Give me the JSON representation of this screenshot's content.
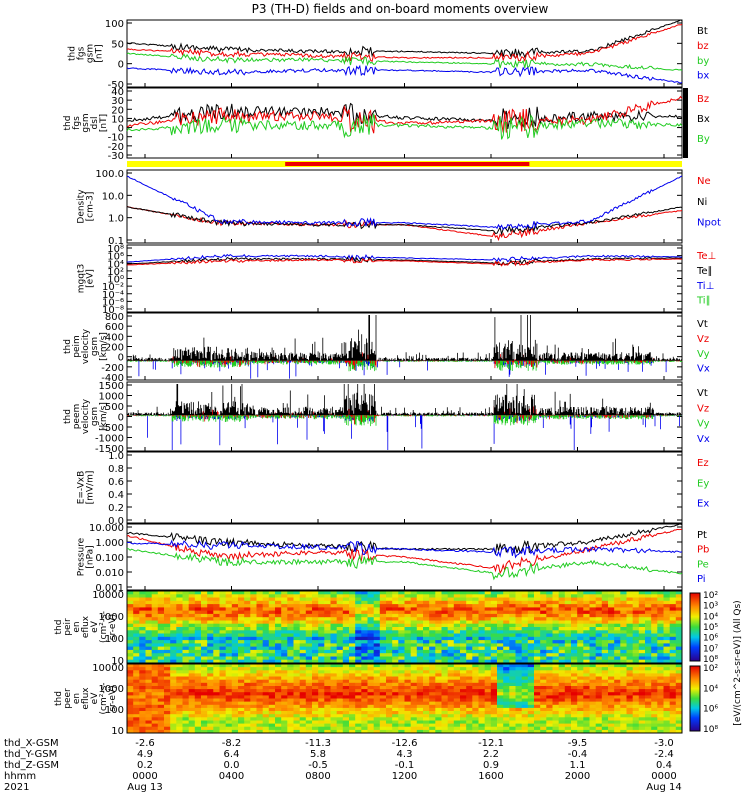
{
  "title": "P3 (TH-D) fields and on-board moments overview",
  "colors": {
    "black": "#000000",
    "red": "#ee0000",
    "green": "#22cc22",
    "blue": "#0000ee",
    "yellow": "#ffff00",
    "mode_red": "#ee0000"
  },
  "panels": [
    {
      "id": "fgs-gsm",
      "ylabel": [
        "thd",
        "fgs",
        "gsm",
        "[nT]"
      ],
      "ticks": [
        "100",
        "50",
        "0",
        "-50"
      ],
      "legend": [
        {
          "text": "Bt",
          "color": "black"
        },
        {
          "text": "bz",
          "color": "red"
        },
        {
          "text": "by",
          "color": "green"
        },
        {
          "text": "bx",
          "color": "blue"
        }
      ]
    },
    {
      "id": "fgs-gsm-dsl",
      "ylabel": [
        "thd",
        "fgs",
        "gsm",
        "dsl",
        "[nT]"
      ],
      "ticks": [
        "40",
        "30",
        "20",
        "10",
        "0",
        "-10",
        "-20",
        "-30"
      ],
      "legend": [
        {
          "text": "Bz",
          "color": "red"
        },
        {
          "text": "Bx",
          "color": "black"
        },
        {
          "text": "By",
          "color": "green"
        }
      ]
    },
    {
      "id": "density",
      "ylabel": [
        "Density",
        "[cm-3]"
      ],
      "ticks": [
        "100.0",
        "10.0",
        "1.0",
        "0.1"
      ],
      "legend": [
        {
          "text": "Ne",
          "color": "red"
        },
        {
          "text": "Ni",
          "color": "black"
        },
        {
          "text": "Npot",
          "color": "blue"
        }
      ]
    },
    {
      "id": "temperature",
      "ylabel": [
        "mgqt3",
        "[eV]"
      ],
      "ticks": [
        "10⁸",
        "10⁶",
        "10⁴",
        "10²",
        "10⁰",
        "10⁻²",
        "10⁻⁴",
        "10⁻⁶",
        "10⁻⁸"
      ],
      "legend": [
        {
          "text": "Te⊥",
          "color": "red"
        },
        {
          "text": "Te∥",
          "color": "black"
        },
        {
          "text": "Ti⊥",
          "color": "blue"
        },
        {
          "text": "Ti∥",
          "color": "green"
        }
      ]
    },
    {
      "id": "peim-velocity",
      "ylabel": [
        "thd",
        "peim",
        "velocity",
        "gsm",
        "[km/s]"
      ],
      "ticks": [
        "800",
        "600",
        "400",
        "200",
        "0",
        "-200",
        "-400"
      ],
      "legend": [
        {
          "text": "Vt",
          "color": "black"
        },
        {
          "text": "Vz",
          "color": "red"
        },
        {
          "text": "Vy",
          "color": "green"
        },
        {
          "text": "Vx",
          "color": "blue"
        }
      ]
    },
    {
      "id": "peem-velocity",
      "ylabel": [
        "thd",
        "peem",
        "velocity",
        "gsm",
        "[km/s]"
      ],
      "ticks": [
        "1500",
        "1000",
        "500",
        "0",
        "-500",
        "-1000",
        "-1500"
      ],
      "legend": [
        {
          "text": "Vt",
          "color": "black"
        },
        {
          "text": "Vz",
          "color": "red"
        },
        {
          "text": "Vy",
          "color": "green"
        },
        {
          "text": "Vx",
          "color": "blue"
        }
      ]
    },
    {
      "id": "efield",
      "ylabel": [
        "E=-VxB",
        "[mV/m]"
      ],
      "ticks": [
        "1.0",
        "0.8",
        "0.6",
        "0.4",
        "0.2",
        "0.0"
      ],
      "legend": [
        {
          "text": "Ez",
          "color": "red"
        },
        {
          "text": "Ey",
          "color": "green"
        },
        {
          "text": "Ex",
          "color": "blue"
        }
      ]
    },
    {
      "id": "pressure",
      "ylabel": [
        "Pressure",
        "[nPa]"
      ],
      "ticks": [
        "10.000",
        "1.000",
        "0.100",
        "0.010",
        "0.001"
      ],
      "legend": [
        {
          "text": "Pt",
          "color": "black"
        },
        {
          "text": "Pb",
          "color": "red"
        },
        {
          "text": "Pe",
          "color": "green"
        },
        {
          "text": "Pi",
          "color": "blue"
        }
      ]
    },
    {
      "id": "peir-spec",
      "ylabel": [
        "thd",
        "peir",
        "en",
        "eflux",
        "eV",
        "(cm²-s-",
        "sr-eV)"
      ],
      "ticks": [
        "10000",
        "1000",
        "100",
        "10"
      ]
    },
    {
      "id": "peer-spec",
      "ylabel": [
        "thd",
        "peer",
        "en",
        "eflux",
        "eV",
        "(cm²-s-",
        "sr-eV)"
      ],
      "ticks": [
        "10000",
        "1000",
        "100",
        "10"
      ]
    }
  ],
  "colorbars": [
    {
      "ticks": [
        "10⁸",
        "10⁷",
        "10⁶",
        "10⁵",
        "10⁴",
        "10³",
        "10²"
      ]
    },
    {
      "ticks": [
        "10⁸",
        "10⁶",
        "10⁴",
        "10²"
      ]
    }
  ],
  "colorbar_label": "[eV/(cm^2-s-sr-eV)] (All Qs)",
  "xaxis": {
    "rows": [
      {
        "label": "thd_X-GSM",
        "values": [
          "-2.6",
          "-8.2",
          "-11.3",
          "-12.6",
          "-12.1",
          "-9.5",
          "-3.0"
        ]
      },
      {
        "label": "thd_Y-GSM",
        "values": [
          "4.9",
          "6.4",
          "5.8",
          "4.3",
          "2.2",
          "-0.4",
          "-2.4"
        ]
      },
      {
        "label": "thd_Z-GSM",
        "values": [
          "0.2",
          "0.0",
          "-0.5",
          "-0.1",
          "0.9",
          "1.1",
          "0.4"
        ]
      },
      {
        "label": "hhmm",
        "values": [
          "0000",
          "0400",
          "0800",
          "1200",
          "1600",
          "2000",
          "0000"
        ]
      },
      {
        "label": "2021",
        "values": [
          "Aug 13",
          "",
          "",
          "",
          "",
          "",
          "Aug 14"
        ]
      }
    ]
  },
  "chart_data": [
    {
      "type": "line",
      "title": "",
      "ylabel": "thd fgs gsm [nT]",
      "ylim": [
        -60,
        100
      ],
      "x": [
        "0000",
        "0400",
        "0800",
        "1200",
        "1600",
        "2000",
        "0000"
      ],
      "series": [
        {
          "name": "Bt",
          "values": [
            45,
            30,
            25,
            25,
            20,
            25,
            100
          ]
        },
        {
          "name": "bz",
          "values": [
            30,
            20,
            15,
            10,
            10,
            20,
            90
          ]
        },
        {
          "name": "by",
          "values": [
            20,
            5,
            5,
            0,
            -5,
            -5,
            -20
          ]
        },
        {
          "name": "bx",
          "values": [
            -15,
            -25,
            -20,
            -20,
            -25,
            -20,
            -50
          ]
        }
      ]
    },
    {
      "type": "line",
      "title": "",
      "ylabel": "thd fgs gsm dsl [nT]",
      "ylim": [
        -35,
        40
      ],
      "x": [
        "0000",
        "0400",
        "0800",
        "1200",
        "1600",
        "2000",
        "0000"
      ],
      "series": [
        {
          "name": "Bx",
          "values": [
            5,
            15,
            15,
            8,
            5,
            10,
            10
          ]
        },
        {
          "name": "Bz",
          "values": [
            0,
            10,
            10,
            2,
            5,
            5,
            30
          ]
        },
        {
          "name": "By",
          "values": [
            -5,
            0,
            0,
            0,
            -3,
            3,
            0
          ]
        }
      ]
    },
    {
      "type": "line",
      "title": "",
      "ylabel": "Density [cm-3]",
      "yscale": "log",
      "ylim": [
        0.05,
        200
      ],
      "x": [
        "0000",
        "0400",
        "0800",
        "1200",
        "1600",
        "2000",
        "0000"
      ],
      "series": [
        {
          "name": "Ne",
          "values": [
            3,
            0.5,
            0.4,
            0.4,
            0.1,
            0.5,
            2
          ]
        },
        {
          "name": "Ni",
          "values": [
            3,
            0.5,
            0.4,
            0.4,
            0.2,
            0.5,
            3
          ]
        },
        {
          "name": "Npot",
          "values": [
            100,
            0.6,
            0.5,
            0.5,
            0.3,
            0.6,
            100
          ]
        }
      ]
    },
    {
      "type": "line",
      "title": "",
      "ylabel": "Pressure [nPa]",
      "yscale": "log",
      "ylim": [
        0.001,
        10
      ],
      "x": [
        "0000",
        "0400",
        "0800",
        "1200",
        "1600",
        "2000",
        "0000"
      ],
      "series": [
        {
          "name": "Pt",
          "values": [
            3,
            0.8,
            0.5,
            0.3,
            0.3,
            0.8,
            10
          ]
        },
        {
          "name": "Pb",
          "values": [
            2,
            0.1,
            0.2,
            0.1,
            0.02,
            0.3,
            5
          ]
        },
        {
          "name": "Pe",
          "values": [
            0.3,
            0.05,
            0.05,
            0.05,
            0.01,
            0.05,
            0.01
          ]
        },
        {
          "name": "Pi",
          "values": [
            0.7,
            0.5,
            0.4,
            0.3,
            0.2,
            0.3,
            0.2
          ]
        }
      ]
    }
  ]
}
